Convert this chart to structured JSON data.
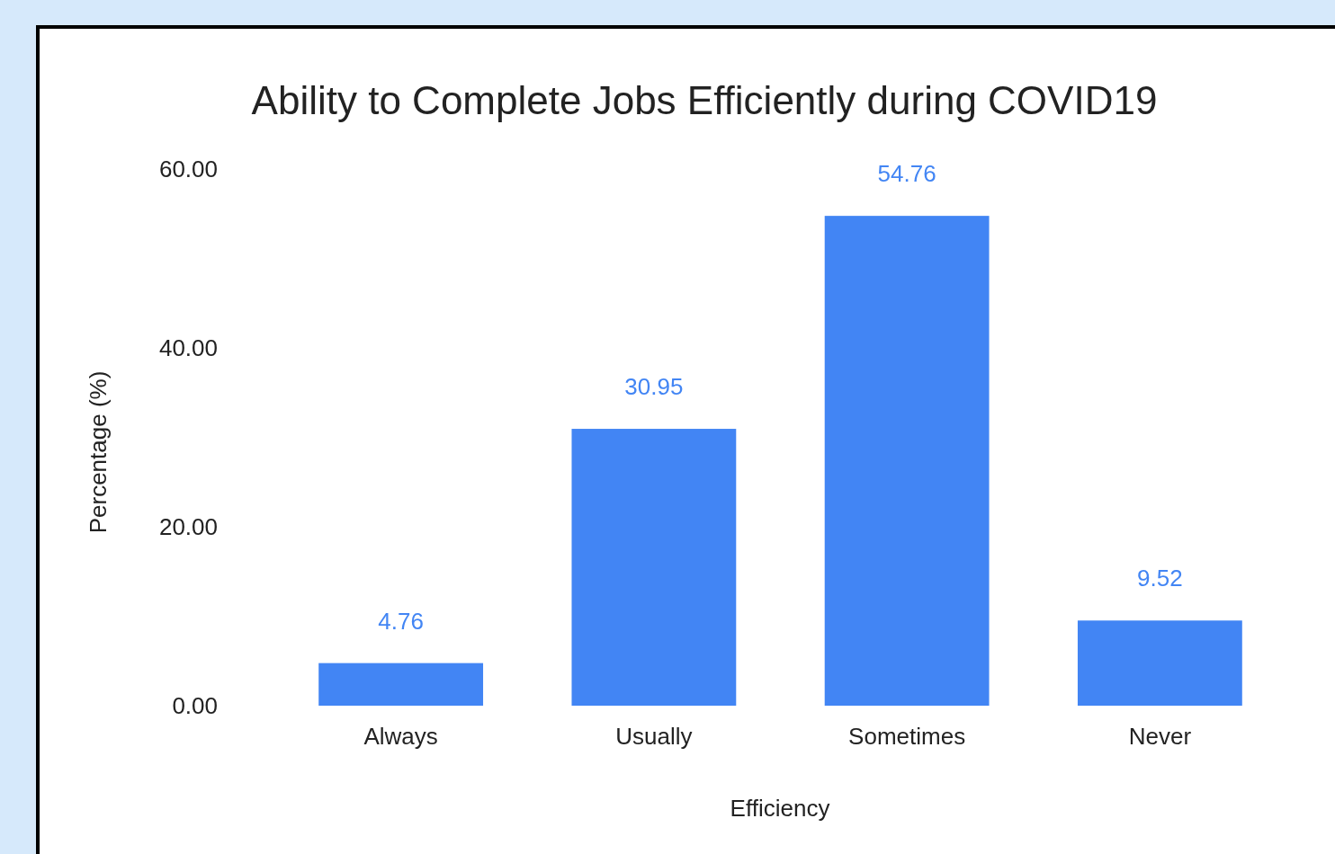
{
  "chart_data": {
    "type": "bar",
    "title": "Ability to Complete Jobs Efficiently during COVID19",
    "xlabel": "Efficiency",
    "ylabel": "Percentage (%)",
    "categories": [
      "Always",
      "Usually",
      "Sometimes",
      "Never"
    ],
    "values": [
      4.76,
      30.95,
      54.76,
      9.52
    ],
    "color": "#4285f4",
    "ylim": [
      0,
      60
    ],
    "yticks": [
      {
        "value": 0,
        "label": "0.00"
      },
      {
        "value": 20,
        "label": "20.00"
      },
      {
        "value": 40,
        "label": "40.00"
      },
      {
        "value": 60,
        "label": "60.00"
      }
    ],
    "data_labels": true
  }
}
